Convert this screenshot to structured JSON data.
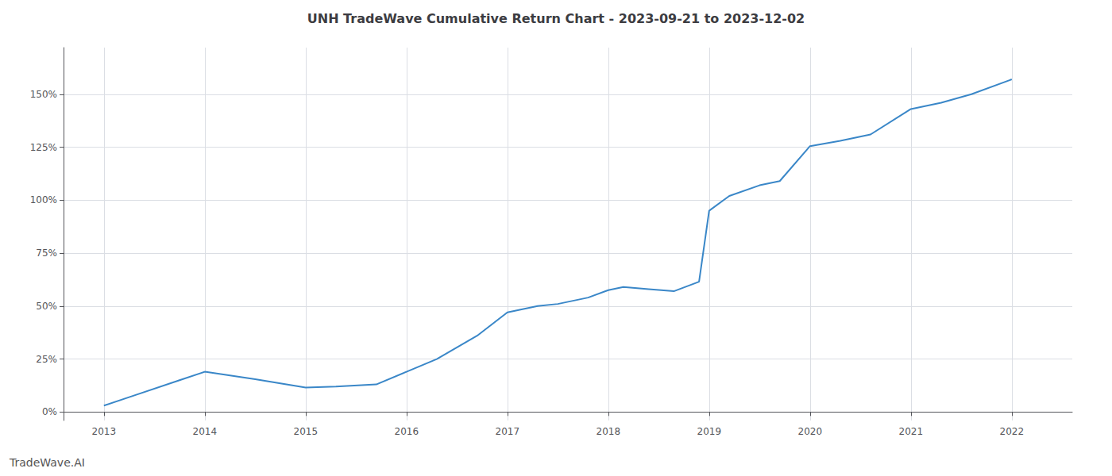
{
  "chart_data": {
    "type": "line",
    "title": "UNH TradeWave Cumulative Return Chart - 2023-09-21 to 2023-12-02",
    "annotations": [
      "TradeWave.AI"
    ],
    "x": [
      2013.0,
      2013.25,
      2013.75,
      2014.0,
      2014.5,
      2015.0,
      2015.3,
      2015.7,
      2016.0,
      2016.3,
      2016.7,
      2017.0,
      2017.3,
      2017.5,
      2017.8,
      2018.0,
      2018.15,
      2018.4,
      2018.65,
      2018.9,
      2019.0,
      2019.2,
      2019.5,
      2019.7,
      2020.0,
      2020.3,
      2020.6,
      2021.0,
      2021.3,
      2021.6,
      2022.0
    ],
    "values": [
      0.03,
      0.07,
      0.15,
      0.19,
      0.155,
      0.115,
      0.12,
      0.13,
      0.19,
      0.25,
      0.36,
      0.47,
      0.5,
      0.51,
      0.54,
      0.575,
      0.59,
      0.58,
      0.57,
      0.615,
      0.95,
      1.02,
      1.07,
      1.09,
      1.255,
      1.28,
      1.31,
      1.43,
      1.46,
      1.5,
      1.57
    ],
    "color": "#3a87c8",
    "xlim": [
      2012.6,
      2022.6
    ],
    "xticks": [
      2013,
      2014,
      2015,
      2016,
      2017,
      2018,
      2019,
      2020,
      2021,
      2022
    ],
    "ylim": [
      -0.04,
      1.72
    ],
    "yticks": [
      {
        "value": 0.0,
        "label": "0%"
      },
      {
        "value": 0.25,
        "label": "25%"
      },
      {
        "value": 0.5,
        "label": "50%"
      },
      {
        "value": 0.75,
        "label": "75%"
      },
      {
        "value": 1.0,
        "label": "100%"
      },
      {
        "value": 1.25,
        "label": "125%"
      },
      {
        "value": 1.5,
        "label": "150%"
      }
    ],
    "grid": true
  }
}
